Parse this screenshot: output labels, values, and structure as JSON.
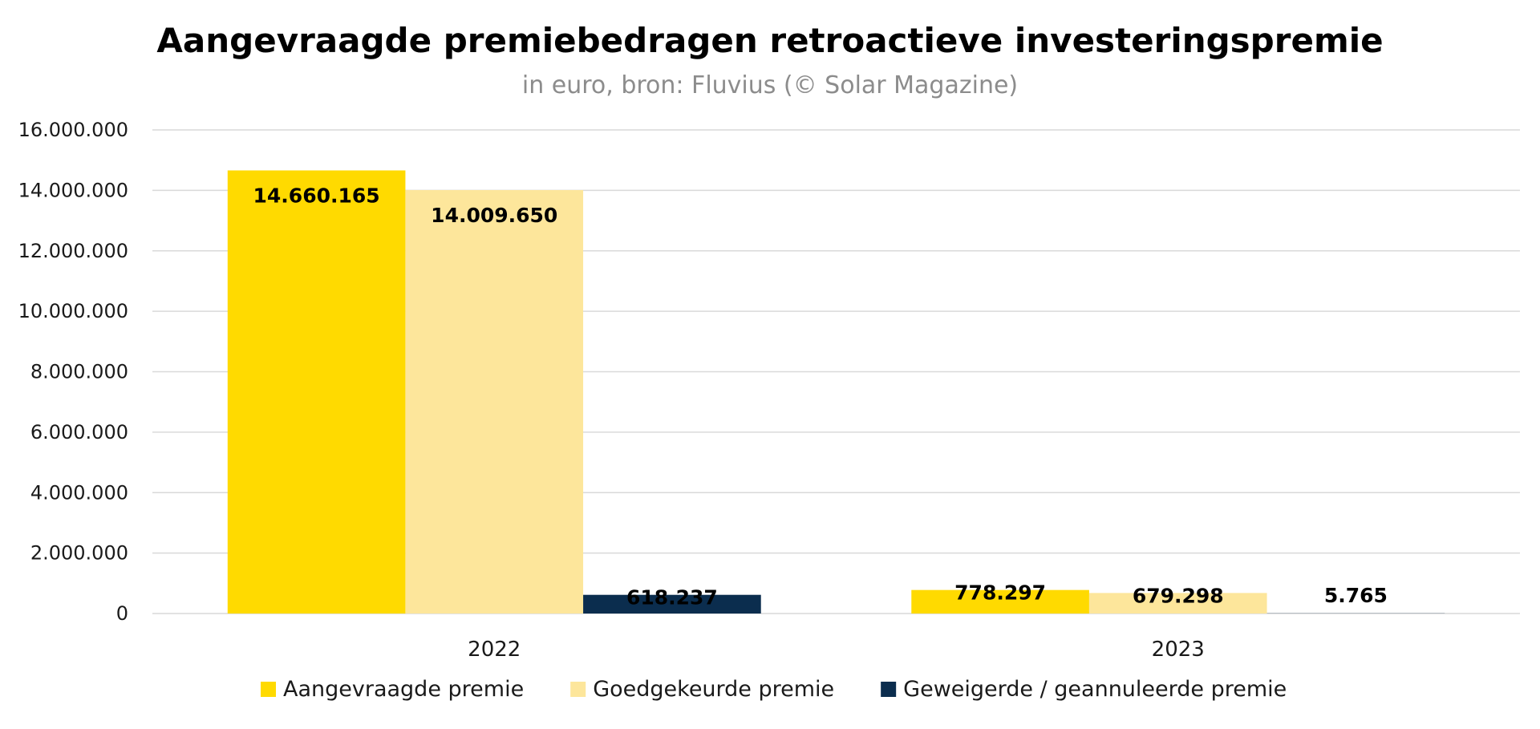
{
  "chart_data": {
    "type": "bar",
    "title": "Aangevraagde premiebedragen retroactieve investeringspremie",
    "subtitle": "in euro, bron: Fluvius (© Solar Magazine)",
    "categories": [
      "2022",
      "2023"
    ],
    "series": [
      {
        "name": "Aangevraagde premie",
        "color": "#FFDA00",
        "values": [
          14660165,
          778297
        ],
        "labels": [
          "14.660.165",
          "778.297"
        ]
      },
      {
        "name": "Goedgekeurde premie",
        "color": "#FDE69B",
        "values": [
          14009650,
          679298
        ],
        "labels": [
          "14.009.650",
          "679.298"
        ]
      },
      {
        "name": "Geweigerde / geannuleerde premie",
        "color": "#0B2D4E",
        "values": [
          618237,
          5765
        ],
        "labels": [
          "618.237",
          "5.765"
        ]
      }
    ],
    "ylim": [
      0,
      16000000
    ],
    "yticks": [
      0,
      2000000,
      4000000,
      6000000,
      8000000,
      10000000,
      12000000,
      14000000,
      16000000
    ],
    "ytick_labels": [
      "0",
      "2.000.000",
      "4.000.000",
      "6.000.000",
      "8.000.000",
      "10.000.000",
      "12.000.000",
      "14.000.000",
      "16.000.000"
    ],
    "grid": true,
    "legend_position": "bottom-center",
    "xlabel": "",
    "ylabel": ""
  }
}
